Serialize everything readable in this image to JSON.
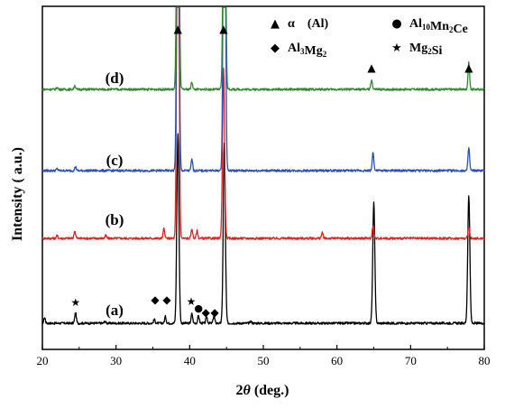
{
  "chart_data": {
    "type": "line",
    "xlabel_prefix": "2",
    "xlabel_theta": "θ",
    "xlabel_suffix": " (deg.)",
    "ylabel": "Intensity ( a.u.)",
    "xlim": [
      20,
      80
    ],
    "xticks": [
      20,
      30,
      40,
      50,
      60,
      70,
      80
    ],
    "yticks_shown": false,
    "series": [
      {
        "name": "(a)",
        "color": "#000000",
        "peaks": [
          [
            20.3,
            0.03
          ],
          [
            24.5,
            0.055
          ],
          [
            28.5,
            0.01
          ],
          [
            35.2,
            0.02
          ],
          [
            36.7,
            0.035
          ],
          [
            38.4,
            1.0
          ],
          [
            40.3,
            0.05
          ],
          [
            41.2,
            0.04
          ],
          [
            42.3,
            0.035
          ],
          [
            43.3,
            0.04
          ],
          [
            44.7,
            0.95
          ],
          [
            48.3,
            0.01
          ],
          [
            65.0,
            0.64
          ],
          [
            77.9,
            0.67
          ]
        ]
      },
      {
        "name": "(b)",
        "color": "#e5201f",
        "peaks": [
          [
            22.0,
            0.015
          ],
          [
            24.4,
            0.04
          ],
          [
            28.6,
            0.015
          ],
          [
            36.5,
            0.05
          ],
          [
            38.4,
            2.5
          ],
          [
            40.3,
            0.05
          ],
          [
            41.0,
            0.04
          ],
          [
            44.6,
            0.9
          ],
          [
            58.0,
            0.03
          ],
          [
            64.9,
            0.07
          ],
          [
            77.9,
            0.06
          ]
        ]
      },
      {
        "name": "(c)",
        "color": "#2b4fb8",
        "peaks": [
          [
            22.0,
            0.01
          ],
          [
            24.5,
            0.02
          ],
          [
            40.3,
            0.06
          ],
          [
            38.4,
            2.5
          ],
          [
            44.7,
            2.5
          ],
          [
            64.9,
            0.1
          ],
          [
            77.9,
            0.12
          ]
        ]
      },
      {
        "name": "(d)",
        "color": "#2e8b2e",
        "peaks": [
          [
            22.0,
            0.01
          ],
          [
            24.4,
            0.02
          ],
          [
            40.3,
            0.04
          ],
          [
            38.4,
            2.5
          ],
          [
            44.7,
            2.5
          ],
          [
            64.7,
            0.05
          ],
          [
            77.9,
            0.14
          ]
        ]
      }
    ],
    "phase_markers": [
      {
        "symbol": "★",
        "x": 24.5,
        "series": "(a)"
      },
      {
        "symbol": "◆",
        "x": 35.3,
        "series": "(a)"
      },
      {
        "symbol": "◆",
        "x": 36.9,
        "series": "(a)"
      },
      {
        "symbol": "★",
        "x": 40.2,
        "series": "(a)"
      },
      {
        "symbol": "●",
        "x": 41.2,
        "series": "(a)"
      },
      {
        "symbol": "◆",
        "x": 42.2,
        "series": "(a)"
      },
      {
        "symbol": "◆",
        "x": 43.4,
        "series": "(a)"
      },
      {
        "symbol": "▲",
        "x": 38.4,
        "series": "(d)"
      },
      {
        "symbol": "▲",
        "x": 44.6,
        "series": "(d)"
      },
      {
        "symbol": "▲",
        "x": 64.7,
        "series": "(d)"
      },
      {
        "symbol": "▲",
        "x": 77.9,
        "series": "(d)"
      }
    ],
    "legend": [
      {
        "symbol": "▲",
        "label": "α　(Al)",
        "sub": ""
      },
      {
        "symbol": "●",
        "label": "Al",
        "sub": "10",
        "label2": "Mn",
        "sub2": "2",
        "label3": "Ce"
      },
      {
        "symbol": "◆",
        "label": "Al",
        "sub": "3",
        "label2": "Mg",
        "sub2": "2",
        "label3": ""
      },
      {
        "symbol": "★",
        "label": "Mg",
        "sub": "2",
        "label2": "Si",
        "sub2": "",
        "label3": ""
      }
    ],
    "legend_position": "top-right"
  }
}
